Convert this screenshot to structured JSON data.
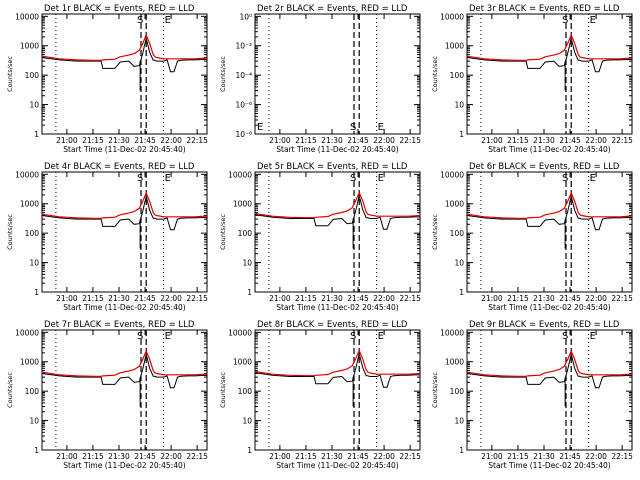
{
  "chart_data": {
    "type": "line",
    "figure_layout": "3x3 grid",
    "x_ticks": [
      "21:00",
      "21:15",
      "21:30",
      "21:45",
      "22:00",
      "22:15"
    ],
    "x_label": "Start Time (11-Dec-02 20:45:40)",
    "y_label": "Counts/sec",
    "y_ticks_log": [
      "1",
      "10",
      "100",
      "1000",
      "10000"
    ],
    "y_ticks_tiny": [
      "10^0",
      "10^-2",
      "10^-4",
      "10^-6",
      "10^-8"
    ],
    "legend": "BLACK = Events, RED = LLD",
    "x_range_minutes_after_start": [
      0,
      95
    ],
    "y_range": [
      1,
      12000
    ],
    "time_minutes": [
      0,
      10,
      20,
      30,
      34,
      35,
      42,
      45,
      50,
      53,
      56,
      58,
      60,
      62,
      64,
      65,
      66,
      68,
      70,
      72,
      74,
      76,
      78,
      80,
      84,
      88,
      92,
      95
    ],
    "series_events": [
      400,
      330,
      300,
      300,
      300,
      170,
      170,
      280,
      300,
      200,
      210,
      550,
      1800,
      600,
      320,
      320,
      300,
      300,
      300,
      330,
      130,
      130,
      300,
      320,
      330,
      330,
      340,
      340
    ],
    "series_lld": [
      440,
      360,
      330,
      320,
      320,
      330,
      350,
      420,
      480,
      540,
      700,
      1200,
      2300,
      1200,
      500,
      420,
      400,
      380,
      360,
      360,
      360,
      360,
      360,
      360,
      360,
      360,
      370,
      380
    ],
    "vertical_dashed_minutes": [
      57,
      60
    ],
    "vertical_dotted_minutes": [
      8,
      70
    ],
    "flags": [
      "S",
      "E"
    ],
    "panels": [
      {
        "title": "Det 1r BLACK = Events, RED = LLD",
        "scale": "counts",
        "factor": 1.0
      },
      {
        "title": "Det 2r BLACK = Events, RED = LLD",
        "scale": "tiny",
        "factor": 1.0
      },
      {
        "title": "Det 3r BLACK = Events, RED = LLD",
        "scale": "counts",
        "factor": 1.0
      },
      {
        "title": "Det 4r BLACK = Events, RED = LLD",
        "scale": "counts",
        "factor": 1.0
      },
      {
        "title": "Det 5r BLACK = Events, RED = LLD",
        "scale": "counts",
        "factor": 1.05
      },
      {
        "title": "Det 6r BLACK = Events, RED = LLD",
        "scale": "counts",
        "factor": 1.0
      },
      {
        "title": "Det 7r BLACK = Events, RED = LLD",
        "scale": "counts",
        "factor": 1.0
      },
      {
        "title": "Det 8r BLACK = Events, RED = LLD",
        "scale": "counts",
        "factor": 1.05
      },
      {
        "title": "Det 9r BLACK = Events, RED = LLD",
        "scale": "counts",
        "factor": 1.0
      }
    ],
    "colors": {
      "events": "#000000",
      "lld": "#e00000",
      "axes": "#000000"
    }
  }
}
